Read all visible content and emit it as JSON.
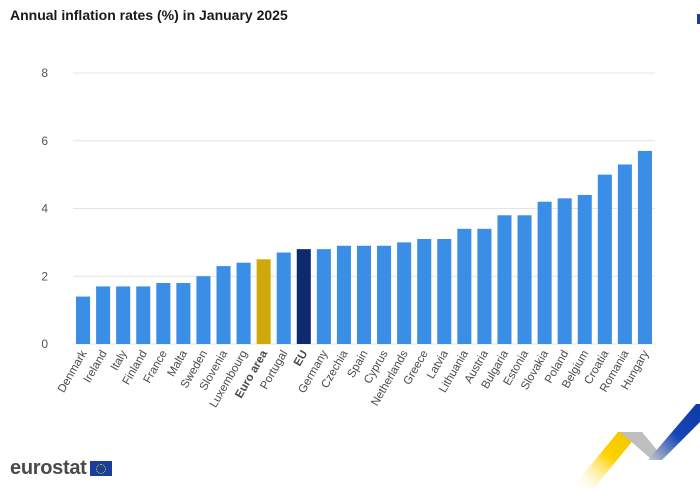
{
  "title": "Annual inflation rates (%) in January 2025",
  "logo": {
    "text": "eurostat",
    "flag_icon": "eu-flag-icon"
  },
  "colors": {
    "country": "#3a8ee6",
    "euro_area": "#d1a80b",
    "eu": "#0d2a6e",
    "grid": "#e4e4e4",
    "axis_text": "#555555"
  },
  "chart_data": {
    "type": "bar",
    "title": "Annual inflation rates (%) in January 2025",
    "xlabel": "",
    "ylabel": "",
    "ylim": [
      0,
      8
    ],
    "yticks": [
      0,
      2,
      4,
      6,
      8
    ],
    "grid": true,
    "categories": [
      "Denmark",
      "Ireland",
      "Italy",
      "Finland",
      "France",
      "Malta",
      "Sweden",
      "Slovenia",
      "Luxembourg",
      "Euro area",
      "Portugal",
      "EU",
      "Germany",
      "Czechia",
      "Spain",
      "Cyprus",
      "Netherlands",
      "Greece",
      "Latvia",
      "Lithuania",
      "Austria",
      "Bulgaria",
      "Estonia",
      "Slovakia",
      "Poland",
      "Belgium",
      "Croatia",
      "Romania",
      "Hungary"
    ],
    "values": [
      1.4,
      1.7,
      1.7,
      1.7,
      1.8,
      1.8,
      2.0,
      2.3,
      2.4,
      2.5,
      2.7,
      2.8,
      2.8,
      2.9,
      2.9,
      2.9,
      3.0,
      3.1,
      3.1,
      3.4,
      3.4,
      3.8,
      3.8,
      4.2,
      4.3,
      4.4,
      5.0,
      5.3,
      5.7
    ],
    "highlighted": {
      "Euro area": "euro_area",
      "EU": "eu"
    }
  }
}
